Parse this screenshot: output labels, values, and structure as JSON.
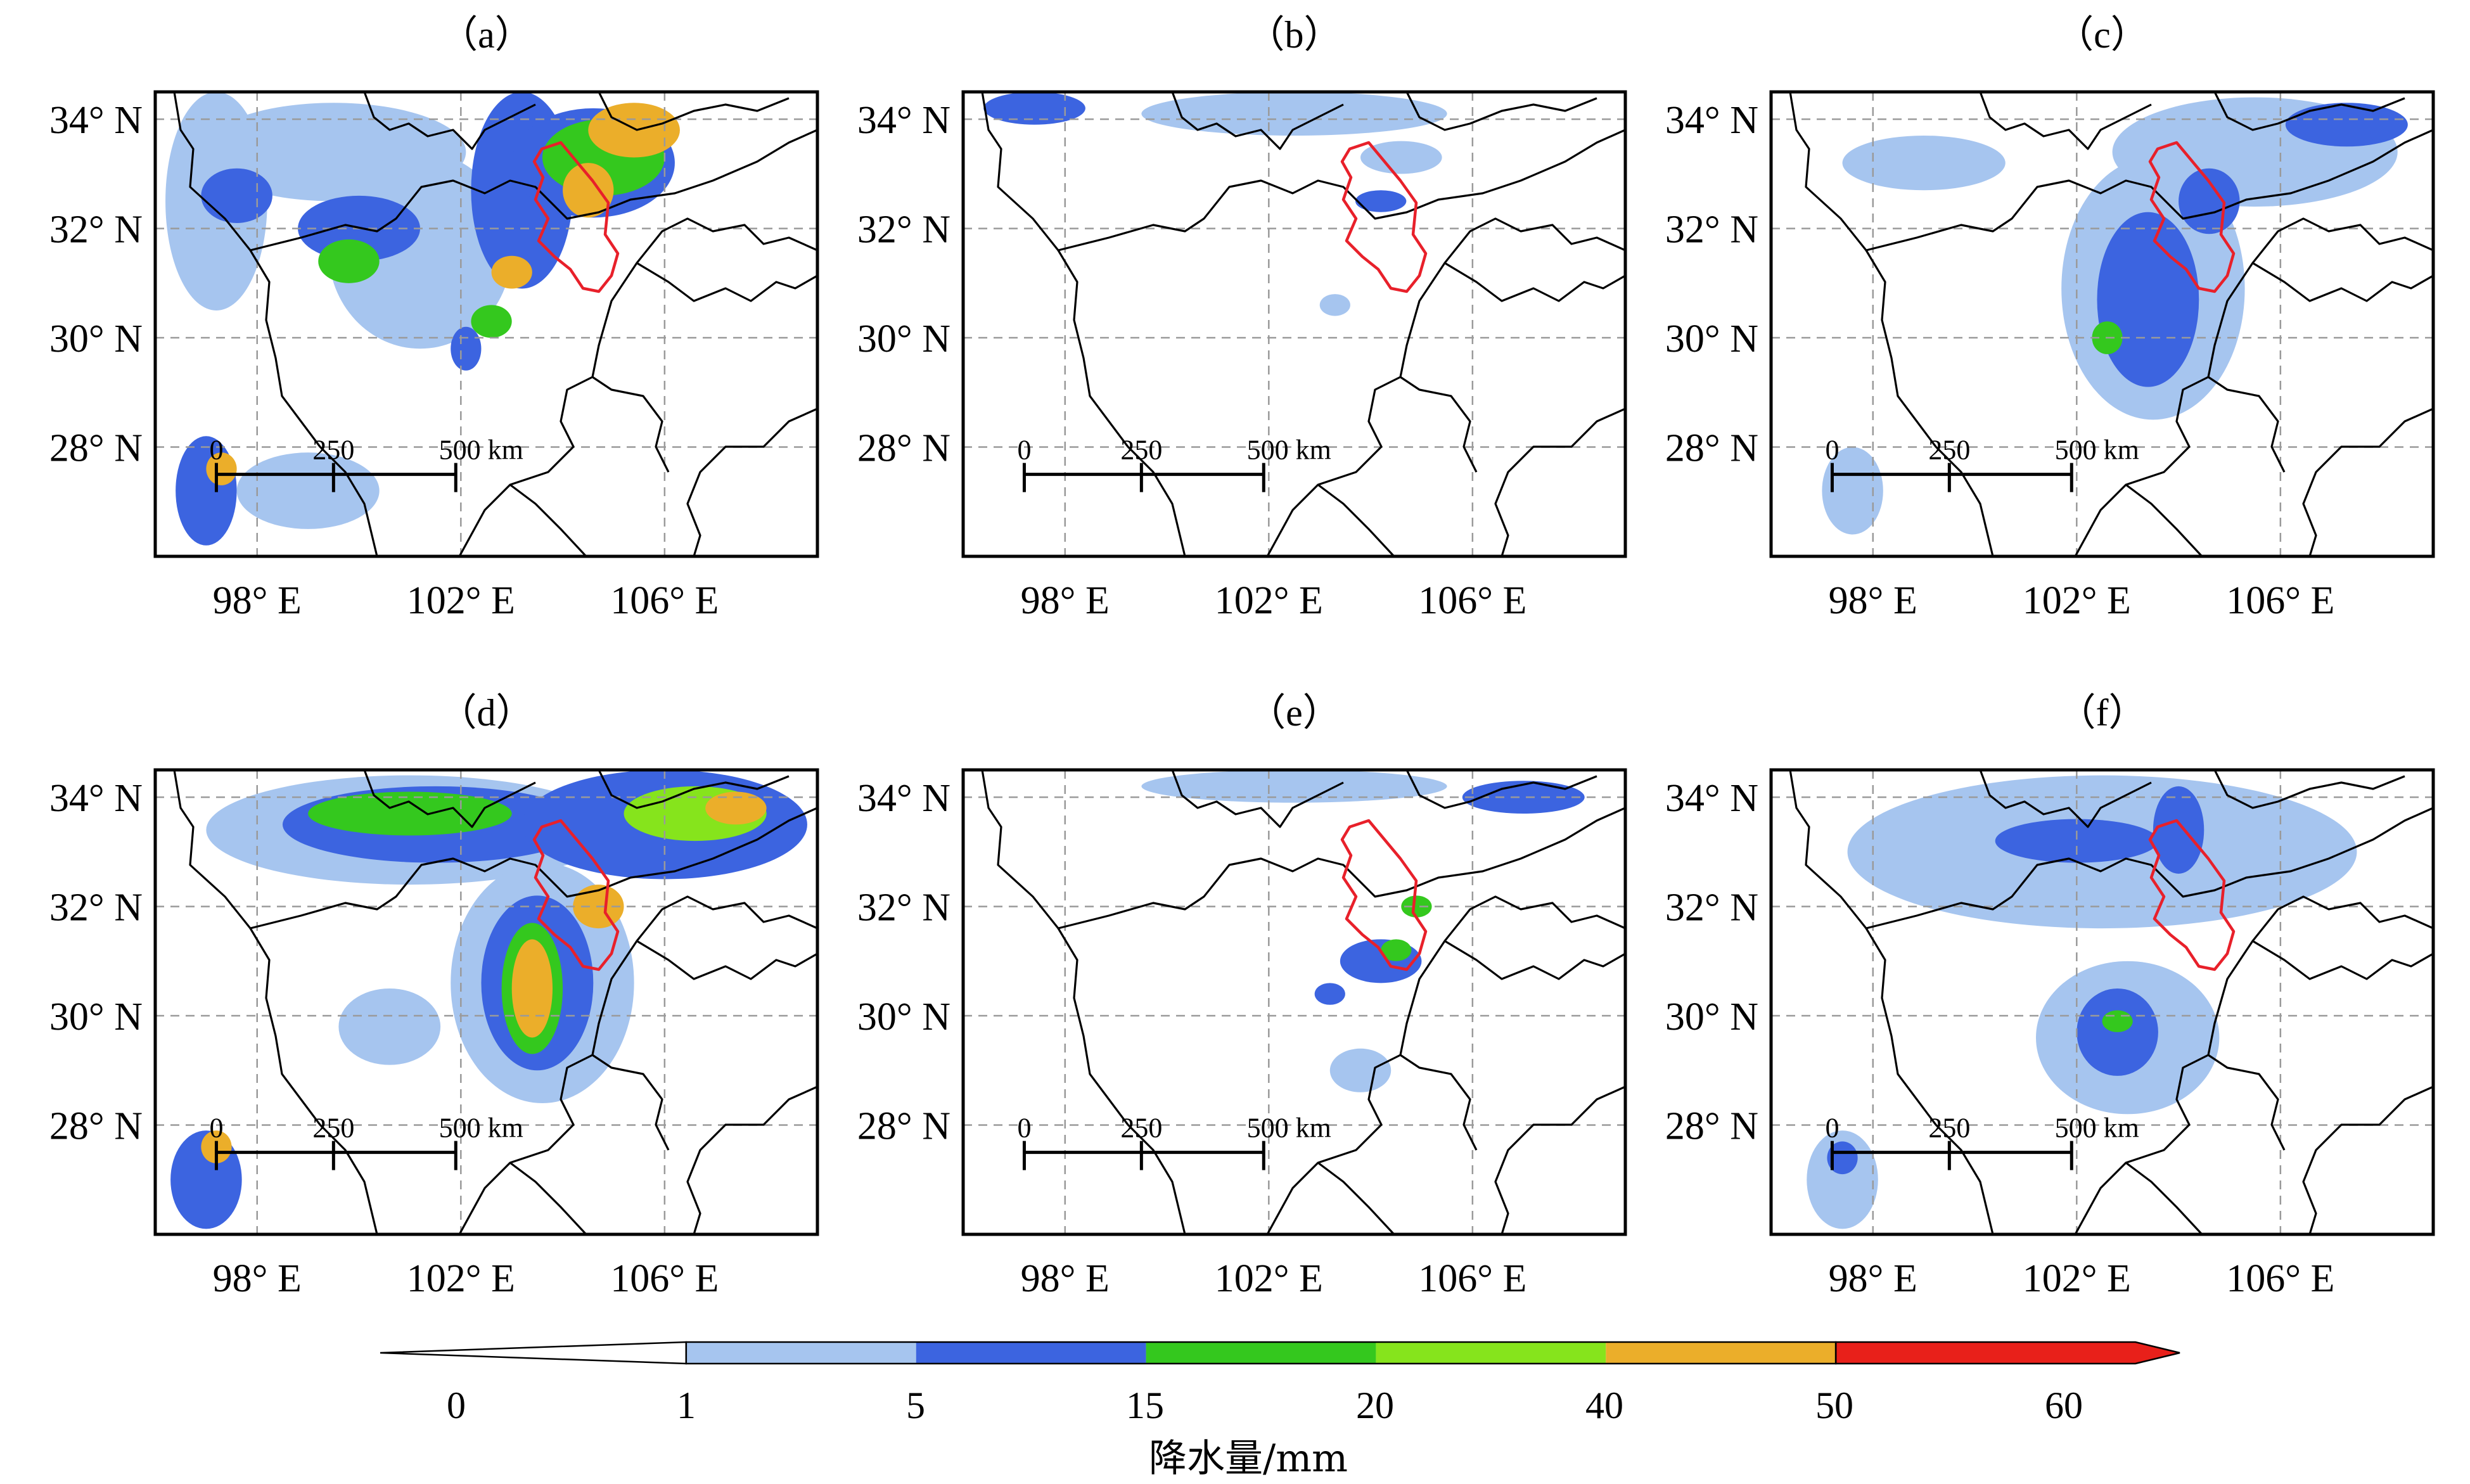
{
  "panels": [
    {
      "label": "（a）",
      "rain": [
        {
          "lon": 99.5,
          "lat": 33.4,
          "rx": 2.6,
          "ry": 0.9,
          "level": 0
        },
        {
          "lon": 101.2,
          "lat": 31.6,
          "rx": 1.8,
          "ry": 1.8,
          "level": 0
        },
        {
          "lon": 97.2,
          "lat": 32.5,
          "rx": 1.0,
          "ry": 2.0,
          "level": 0
        },
        {
          "lon": 100.0,
          "lat": 32.0,
          "rx": 1.2,
          "ry": 0.6,
          "level": 1
        },
        {
          "lon": 97.6,
          "lat": 32.6,
          "rx": 0.7,
          "ry": 0.5,
          "level": 1
        },
        {
          "lon": 99.8,
          "lat": 31.4,
          "rx": 0.6,
          "ry": 0.4,
          "level": 2
        },
        {
          "lon": 103.2,
          "lat": 32.7,
          "rx": 1.0,
          "ry": 1.8,
          "level": 1
        },
        {
          "lon": 104.6,
          "lat": 33.2,
          "rx": 1.6,
          "ry": 1.0,
          "level": 1
        },
        {
          "lon": 104.8,
          "lat": 33.3,
          "rx": 1.2,
          "ry": 0.7,
          "level": 2
        },
        {
          "lon": 105.4,
          "lat": 33.8,
          "rx": 0.9,
          "ry": 0.5,
          "level": 4
        },
        {
          "lon": 104.5,
          "lat": 32.7,
          "rx": 0.5,
          "ry": 0.5,
          "level": 4
        },
        {
          "lon": 103.0,
          "lat": 31.2,
          "rx": 0.4,
          "ry": 0.3,
          "level": 4
        },
        {
          "lon": 102.6,
          "lat": 30.3,
          "rx": 0.4,
          "ry": 0.3,
          "level": 2
        },
        {
          "lon": 102.1,
          "lat": 29.8,
          "rx": 0.3,
          "ry": 0.4,
          "level": 1
        },
        {
          "lon": 97.0,
          "lat": 27.2,
          "rx": 0.6,
          "ry": 1.0,
          "level": 1
        },
        {
          "lon": 97.3,
          "lat": 27.6,
          "rx": 0.3,
          "ry": 0.3,
          "level": 4
        },
        {
          "lon": 99.0,
          "lat": 27.2,
          "rx": 1.4,
          "ry": 0.7,
          "level": 0
        }
      ]
    },
    {
      "label": "（b）",
      "rain": [
        {
          "lon": 97.4,
          "lat": 34.2,
          "rx": 1.0,
          "ry": 0.3,
          "level": 1
        },
        {
          "lon": 102.5,
          "lat": 34.1,
          "rx": 3.0,
          "ry": 0.4,
          "level": 0
        },
        {
          "lon": 104.2,
          "lat": 32.5,
          "rx": 0.5,
          "ry": 0.2,
          "level": 1
        },
        {
          "lon": 104.6,
          "lat": 33.3,
          "rx": 0.8,
          "ry": 0.3,
          "level": 0
        },
        {
          "lon": 103.3,
          "lat": 30.6,
          "rx": 0.3,
          "ry": 0.2,
          "level": 0
        }
      ]
    },
    {
      "label": "（c）",
      "rain": [
        {
          "lon": 103.5,
          "lat": 30.9,
          "rx": 1.8,
          "ry": 2.4,
          "level": 0
        },
        {
          "lon": 103.4,
          "lat": 30.7,
          "rx": 1.0,
          "ry": 1.6,
          "level": 1
        },
        {
          "lon": 102.6,
          "lat": 30.0,
          "rx": 0.3,
          "ry": 0.3,
          "level": 2
        },
        {
          "lon": 105.5,
          "lat": 33.4,
          "rx": 2.8,
          "ry": 1.0,
          "level": 0
        },
        {
          "lon": 104.6,
          "lat": 32.5,
          "rx": 0.6,
          "ry": 0.6,
          "level": 1
        },
        {
          "lon": 107.3,
          "lat": 33.9,
          "rx": 1.2,
          "ry": 0.4,
          "level": 1
        },
        {
          "lon": 99.0,
          "lat": 33.2,
          "rx": 1.6,
          "ry": 0.5,
          "level": 0
        },
        {
          "lon": 97.6,
          "lat": 27.2,
          "rx": 0.6,
          "ry": 0.8,
          "level": 0
        }
      ]
    },
    {
      "label": "（d）",
      "rain": [
        {
          "lon": 101.0,
          "lat": 33.4,
          "rx": 4.0,
          "ry": 1.0,
          "level": 0
        },
        {
          "lon": 101.5,
          "lat": 33.5,
          "rx": 3.0,
          "ry": 0.7,
          "level": 1
        },
        {
          "lon": 101.0,
          "lat": 33.7,
          "rx": 2.0,
          "ry": 0.4,
          "level": 2
        },
        {
          "lon": 106.0,
          "lat": 33.5,
          "rx": 2.8,
          "ry": 1.0,
          "level": 1
        },
        {
          "lon": 106.6,
          "lat": 33.7,
          "rx": 1.4,
          "ry": 0.5,
          "level": 3
        },
        {
          "lon": 107.4,
          "lat": 33.8,
          "rx": 0.6,
          "ry": 0.3,
          "level": 4
        },
        {
          "lon": 103.6,
          "lat": 30.6,
          "rx": 1.8,
          "ry": 2.2,
          "level": 0
        },
        {
          "lon": 103.5,
          "lat": 30.6,
          "rx": 1.1,
          "ry": 1.6,
          "level": 1
        },
        {
          "lon": 103.4,
          "lat": 30.5,
          "rx": 0.6,
          "ry": 1.2,
          "level": 2
        },
        {
          "lon": 103.4,
          "lat": 30.5,
          "rx": 0.4,
          "ry": 0.9,
          "level": 4
        },
        {
          "lon": 104.7,
          "lat": 32.0,
          "rx": 0.5,
          "ry": 0.4,
          "level": 4
        },
        {
          "lon": 100.6,
          "lat": 29.8,
          "rx": 1.0,
          "ry": 0.7,
          "level": 0
        },
        {
          "lon": 97.0,
          "lat": 27.0,
          "rx": 0.7,
          "ry": 0.9,
          "level": 1
        },
        {
          "lon": 97.2,
          "lat": 27.6,
          "rx": 0.3,
          "ry": 0.3,
          "level": 4
        }
      ]
    },
    {
      "label": "（e）",
      "rain": [
        {
          "lon": 102.5,
          "lat": 34.2,
          "rx": 3.0,
          "ry": 0.3,
          "level": 0
        },
        {
          "lon": 107.0,
          "lat": 34.0,
          "rx": 1.2,
          "ry": 0.3,
          "level": 1
        },
        {
          "lon": 104.2,
          "lat": 31.0,
          "rx": 0.8,
          "ry": 0.4,
          "level": 1
        },
        {
          "lon": 104.5,
          "lat": 31.2,
          "rx": 0.3,
          "ry": 0.2,
          "level": 2
        },
        {
          "lon": 104.9,
          "lat": 32.0,
          "rx": 0.3,
          "ry": 0.2,
          "level": 2
        },
        {
          "lon": 103.2,
          "lat": 30.4,
          "rx": 0.3,
          "ry": 0.2,
          "level": 1
        },
        {
          "lon": 103.8,
          "lat": 29.0,
          "rx": 0.6,
          "ry": 0.4,
          "level": 0
        }
      ]
    },
    {
      "label": "（f）",
      "rain": [
        {
          "lon": 102.5,
          "lat": 33.0,
          "rx": 5.0,
          "ry": 1.4,
          "level": 0
        },
        {
          "lon": 102.0,
          "lat": 33.2,
          "rx": 1.6,
          "ry": 0.4,
          "level": 1
        },
        {
          "lon": 104.0,
          "lat": 33.4,
          "rx": 0.5,
          "ry": 0.8,
          "level": 1
        },
        {
          "lon": 103.0,
          "lat": 29.6,
          "rx": 1.8,
          "ry": 1.4,
          "level": 0
        },
        {
          "lon": 102.8,
          "lat": 29.7,
          "rx": 0.8,
          "ry": 0.8,
          "level": 1
        },
        {
          "lon": 102.8,
          "lat": 29.9,
          "rx": 0.3,
          "ry": 0.2,
          "level": 2
        },
        {
          "lon": 97.4,
          "lat": 27.0,
          "rx": 0.7,
          "ry": 0.9,
          "level": 0
        },
        {
          "lon": 97.4,
          "lat": 27.4,
          "rx": 0.3,
          "ry": 0.3,
          "level": 1
        }
      ]
    }
  ],
  "lon_ticks": [
    {
      "value": 98,
      "label": "98° E"
    },
    {
      "value": 102,
      "label": "102° E"
    },
    {
      "value": 106,
      "label": "106° E"
    }
  ],
  "lat_ticks": [
    {
      "value": 28,
      "label": "28° N"
    },
    {
      "value": 30,
      "label": "30° N"
    },
    {
      "value": 32,
      "label": "32° N"
    },
    {
      "value": 34,
      "label": "34° N"
    }
  ],
  "lon_range": [
    96.0,
    109.0
  ],
  "lat_range": [
    26.0,
    34.5
  ],
  "scale_bar": {
    "labels": [
      "0",
      "250",
      "500 km"
    ],
    "lon": [
      97.2,
      99.5,
      101.9
    ],
    "lat": 27.5
  },
  "colorbar": {
    "title": "降水量/mm",
    "labels": [
      "0",
      "1",
      "5",
      "15",
      "20",
      "40",
      "50",
      "60"
    ],
    "colors": [
      "#ffffff",
      "#a6c5ef",
      "#3c64e0",
      "#34c81e",
      "#86e41c",
      "#ebae2a",
      "#e8201a"
    ]
  }
}
